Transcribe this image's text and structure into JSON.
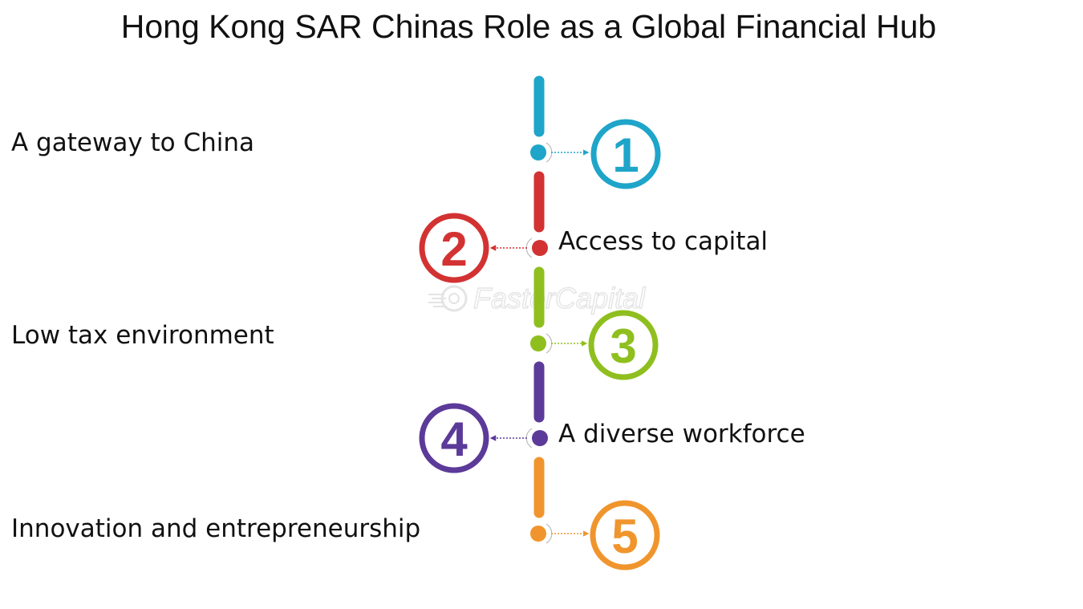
{
  "title": "Hong Kong SAR Chinas Role as a Global Financial Hub",
  "watermark": "FasterCapital",
  "steps": [
    {
      "number": "1",
      "label": "A gateway to China",
      "color": "#1ea5c9",
      "side": "right"
    },
    {
      "number": "2",
      "label": "Access to capital",
      "color": "#d33232",
      "side": "left"
    },
    {
      "number": "3",
      "label": "Low tax environment",
      "color": "#8fbf1f",
      "side": "right"
    },
    {
      "number": "4",
      "label": "A diverse workforce",
      "color": "#5c3a99",
      "side": "left"
    },
    {
      "number": "5",
      "label": "Innovation and entrepreneurship",
      "color": "#f0952d",
      "side": "right"
    }
  ]
}
